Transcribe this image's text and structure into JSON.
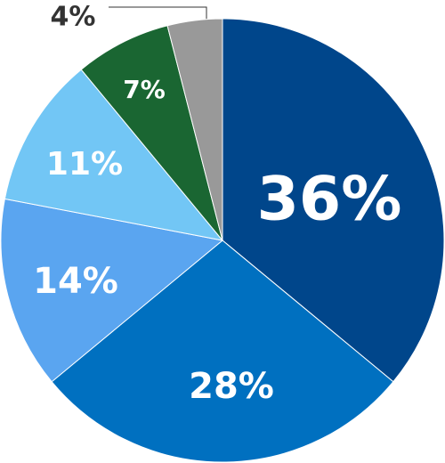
{
  "chart_data": {
    "type": "pie",
    "values": [
      36,
      28,
      14,
      11,
      7,
      4
    ],
    "value_labels": [
      "36%",
      "28%",
      "14%",
      "11%",
      "7%",
      "4%"
    ],
    "colors": [
      "#00468b",
      "#0070c0",
      "#5aa5f0",
      "#72c6f5",
      "#1a6632",
      "#999999"
    ]
  }
}
